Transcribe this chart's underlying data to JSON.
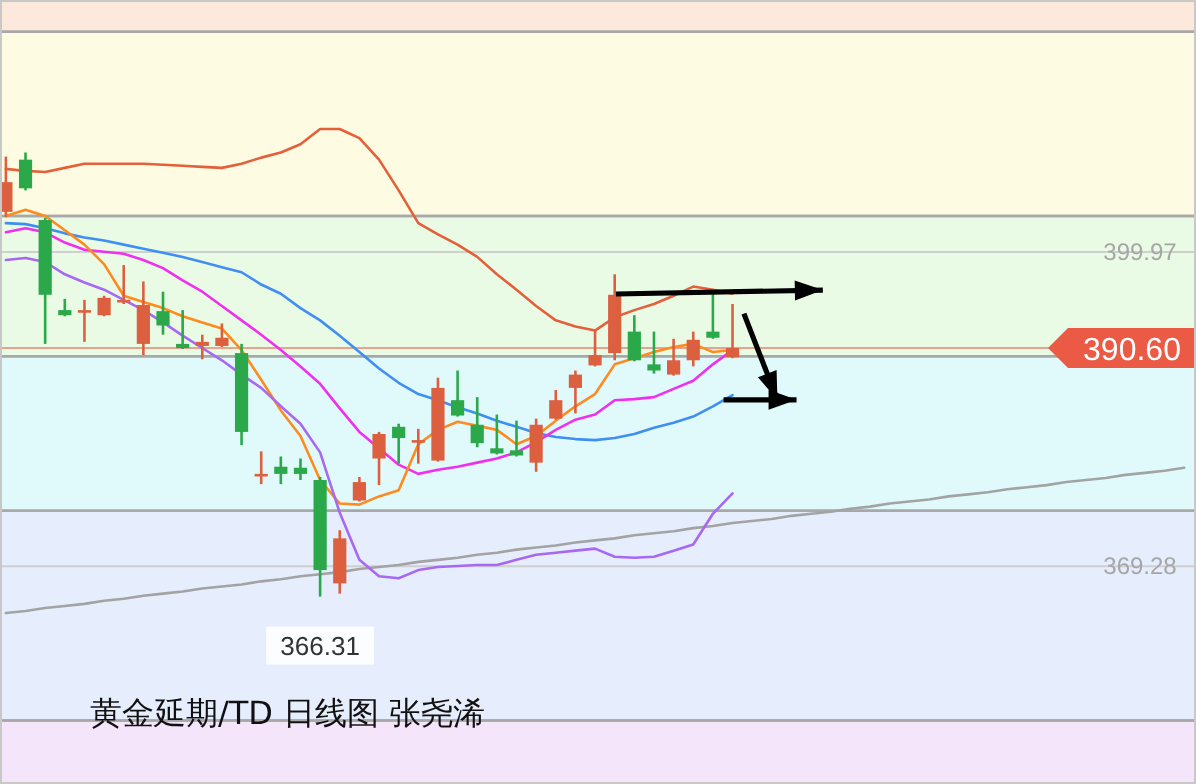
{
  "chart_data": {
    "type": "candlestick",
    "title": "黄金延期/TD  日线图  张尧浠",
    "categories": [
      null,
      null,
      null,
      null,
      null,
      null,
      null,
      null,
      null,
      null,
      null,
      null,
      null,
      null,
      null,
      null,
      null,
      null,
      null,
      null,
      null,
      null,
      null,
      null,
      null,
      null,
      null,
      null,
      null,
      null,
      null,
      null,
      null,
      null,
      null,
      null,
      null,
      null,
      null,
      null,
      null,
      null,
      null,
      null,
      null,
      null,
      null,
      null,
      null,
      null,
      null,
      null,
      null,
      null,
      null,
      null,
      null,
      null,
      null,
      null,
      null
    ],
    "ohlc": [
      [
        403.9,
        409.3,
        403.4,
        406.8
      ],
      [
        409.0,
        409.7,
        406.0,
        406.2
      ],
      [
        403.1,
        403.3,
        391.0,
        395.8
      ],
      [
        394.3,
        395.4,
        393.7,
        393.8
      ],
      [
        394.1,
        395.3,
        391.2,
        394.3
      ],
      [
        393.8,
        395.7,
        393.7,
        395.5
      ],
      [
        395.1,
        398.7,
        394.9,
        395.3
      ],
      [
        391.0,
        397.1,
        389.9,
        394.8
      ],
      [
        394.2,
        396.1,
        391.9,
        392.8
      ],
      [
        391.0,
        394.3,
        390.5,
        390.6
      ],
      [
        390.8,
        391.9,
        389.5,
        391.2
      ],
      [
        390.8,
        393.0,
        390.7,
        391.6
      ],
      [
        390.1,
        391.0,
        381.1,
        382.4
      ],
      [
        378.2,
        380.5,
        377.3,
        378.3
      ],
      [
        379.0,
        380.0,
        377.3,
        378.3
      ],
      [
        378.9,
        379.8,
        377.7,
        378.3
      ],
      [
        377.7,
        378.0,
        366.31,
        368.9
      ],
      [
        367.6,
        372.8,
        366.6,
        372.0
      ],
      [
        375.7,
        378.0,
        375.6,
        377.5
      ],
      [
        379.8,
        382.4,
        377.2,
        382.2
      ],
      [
        382.9,
        383.2,
        379.3,
        381.8
      ],
      [
        381.5,
        382.7,
        379.3,
        381.6
      ],
      [
        379.6,
        387.7,
        379.5,
        386.7
      ],
      [
        385.5,
        388.4,
        383.9,
        384.0
      ],
      [
        383.1,
        385.8,
        380.9,
        381.3
      ],
      [
        380.8,
        384.1,
        380.2,
        380.3
      ],
      [
        380.6,
        383.5,
        380.0,
        380.1
      ],
      [
        379.4,
        383.7,
        378.5,
        383.1
      ],
      [
        383.7,
        386.5,
        383.6,
        385.5
      ],
      [
        386.7,
        388.4,
        384.2,
        388.0
      ],
      [
        388.9,
        392.3,
        388.8,
        389.9
      ],
      [
        390.1,
        397.8,
        389.4,
        395.8
      ],
      [
        392.2,
        393.8,
        389.3,
        389.4
      ],
      [
        389.0,
        392.2,
        388.1,
        388.4
      ],
      [
        388.0,
        391.5,
        387.9,
        389.4
      ],
      [
        389.4,
        392.2,
        388.8,
        391.4
      ],
      [
        392.2,
        395.9,
        391.5,
        391.6
      ],
      [
        389.7,
        394.9,
        389.6,
        390.6
      ],
      null,
      null,
      null,
      null,
      null,
      null,
      null,
      null,
      null,
      null,
      null,
      null,
      null,
      null,
      null,
      null,
      null,
      null,
      null,
      null,
      null,
      null,
      null
    ],
    "colors": [
      "#dc5f3f",
      "#2aa84a",
      "#2aa84a",
      "#2aa84a",
      "#dc5f3f",
      "#dc5f3f",
      "#dc5f3f",
      "#dc5f3f",
      "#2aa84a",
      "#2aa84a",
      "#dc5f3f",
      "#dc5f3f",
      "#2aa84a",
      "#dc5f3f",
      "#2aa84a",
      "#2aa84a",
      "#2aa84a",
      "#dc5f3f",
      "#dc5f3f",
      "#dc5f3f",
      "#2aa84a",
      "#dc5f3f",
      "#dc5f3f",
      "#2aa84a",
      "#2aa84a",
      "#2aa84a",
      "#2aa84a",
      "#dc5f3f",
      "#dc5f3f",
      "#dc5f3f",
      "#dc5f3f",
      "#dc5f3f",
      "#2aa84a",
      "#2aa84a",
      "#dc5f3f",
      "#dc5f3f",
      "#2aa84a",
      "#dc5f3f",
      null,
      null,
      null,
      null,
      null,
      null,
      null,
      null,
      null,
      null,
      null,
      null,
      null,
      null,
      null,
      null,
      null,
      null,
      null,
      null,
      null,
      null,
      null
    ],
    "series": [
      {
        "type": "line",
        "color": "#a3a3a3",
        "values": [
          364.7,
          364.9,
          365.2,
          365.4,
          365.6,
          365.9,
          366.1,
          366.4,
          366.6,
          366.8,
          367.1,
          367.3,
          367.5,
          367.8,
          368.0,
          368.3,
          368.5,
          368.7,
          369.0,
          369.2,
          369.4,
          369.7,
          369.9,
          370.1,
          370.4,
          370.6,
          370.9,
          371.1,
          371.3,
          371.6,
          371.8,
          372.0,
          372.3,
          372.5,
          372.7,
          373.0,
          373.2,
          373.5,
          373.7,
          373.9,
          374.2,
          374.4,
          374.6,
          374.9,
          375.1,
          375.4,
          375.6,
          375.8,
          376.1,
          376.3,
          376.5,
          376.8,
          377.0,
          377.2,
          377.5,
          377.7,
          377.9,
          378.2,
          378.4,
          378.6,
          378.9
        ]
      },
      {
        "type": "line",
        "color": "#e4603a",
        "values": [
          408.1,
          407.9,
          407.8,
          408.2,
          408.6,
          408.6,
          408.6,
          408.6,
          408.5,
          408.4,
          408.3,
          408.2,
          408.6,
          409.2,
          409.7,
          410.5,
          412.0,
          412.0,
          411.1,
          409.0,
          406.0,
          402.8,
          401.7,
          400.7,
          399.5,
          397.8,
          396.3,
          394.7,
          393.3,
          392.7,
          392.3,
          393.6,
          394.3,
          394.9,
          395.7,
          396.6,
          396.3,
          395.9,
          null,
          null,
          null,
          null,
          null,
          null,
          null,
          null,
          null,
          null,
          null,
          null,
          null,
          null,
          null,
          null,
          null,
          null,
          null,
          null,
          null,
          null,
          null
        ]
      },
      {
        "type": "line",
        "color": "#3f8ff2",
        "values": [
          402.8,
          402.7,
          402.3,
          401.8,
          401.4,
          401.1,
          400.7,
          400.3,
          399.9,
          399.5,
          399.0,
          398.5,
          398.0,
          396.8,
          395.9,
          394.5,
          393.3,
          391.8,
          390.2,
          388.6,
          387.2,
          386.1,
          385.5,
          384.8,
          384.2,
          383.5,
          382.9,
          382.3,
          381.9,
          381.7,
          381.6,
          381.8,
          382.2,
          382.8,
          383.3,
          383.9,
          384.9,
          386.0,
          null,
          null,
          null,
          null,
          null,
          null,
          null,
          null,
          null,
          null,
          null,
          null,
          null,
          null,
          null,
          null,
          null,
          null,
          null,
          null,
          null,
          null,
          null
        ]
      },
      {
        "type": "line",
        "color": "#f02ff0",
        "values": [
          401.9,
          402.3,
          401.9,
          400.9,
          400.2,
          400.0,
          399.8,
          399.2,
          398.4,
          397.2,
          396.1,
          394.7,
          393.3,
          391.9,
          390.4,
          388.8,
          387.1,
          384.7,
          382.4,
          380.8,
          379.2,
          378.3,
          378.7,
          379.0,
          379.4,
          379.8,
          380.4,
          381.4,
          382.6,
          383.6,
          384.1,
          385.5,
          385.6,
          385.8,
          386.6,
          387.4,
          389.0,
          390.4,
          null,
          null,
          null,
          null,
          null,
          null,
          null,
          null,
          null,
          null,
          null,
          null,
          null,
          null,
          null,
          null,
          null,
          null,
          null,
          null,
          null,
          null,
          null
        ]
      },
      {
        "type": "line",
        "color": "#ff8a1e",
        "values": [
          403.5,
          404.1,
          403.5,
          402.1,
          400.7,
          398.8,
          395.7,
          395.1,
          394.5,
          393.7,
          393.1,
          392.5,
          390.4,
          387.5,
          384.5,
          382.0,
          377.7,
          375.4,
          375.3,
          376.1,
          376.7,
          381.2,
          382.6,
          383.4,
          383.0,
          382.6,
          381.2,
          382.0,
          383.5,
          384.9,
          386.1,
          389.0,
          389.6,
          390.2,
          390.7,
          391.0,
          390.2,
          390.4,
          null,
          null,
          null,
          null,
          null,
          null,
          null,
          null,
          null,
          null,
          null,
          null,
          null,
          null,
          null,
          null,
          null,
          null,
          null,
          null,
          null,
          null,
          null
        ]
      },
      {
        "type": "line",
        "color": "#a768f2",
        "values": [
          399.2,
          399.4,
          399.0,
          397.8,
          397.0,
          396.3,
          395.3,
          394.3,
          393.1,
          391.8,
          390.6,
          389.4,
          388.0,
          386.7,
          384.9,
          383.2,
          380.4,
          374.5,
          369.9,
          368.3,
          368.1,
          368.9,
          369.2,
          369.3,
          369.4,
          369.4,
          369.9,
          370.4,
          370.6,
          370.8,
          371.0,
          370.2,
          370.1,
          370.2,
          370.8,
          371.4,
          374.4,
          376.4,
          null,
          null,
          null,
          null,
          null,
          null,
          null,
          null,
          null,
          null,
          null,
          null,
          null,
          null,
          null,
          null,
          null,
          null,
          null,
          null,
          null,
          null,
          null
        ]
      }
    ],
    "ylim": [
      348.0,
      424.6
    ],
    "yticks": [
      {
        "value": 399.97,
        "label": "399.97"
      },
      {
        "value": 369.28,
        "label": "369.28"
      }
    ],
    "grid": "y",
    "ref_lines": [
      {
        "axis": "y",
        "value": 390.6,
        "label": "390.60",
        "color": "#ea5a44"
      }
    ],
    "bands": [
      {
        "axis": "y",
        "from": 421.5,
        "to": 424.6,
        "color": "#fde9dc"
      },
      {
        "axis": "y",
        "from": 403.5,
        "to": 421.5,
        "color": "#fefbe3"
      },
      {
        "axis": "y",
        "from": 389.8,
        "to": 403.5,
        "color": "#eafbe5"
      },
      {
        "axis": "y",
        "from": 374.7,
        "to": 389.8,
        "color": "#e0fafb"
      },
      {
        "axis": "y",
        "from": 354.2,
        "to": 374.7,
        "color": "#e6edfd"
      },
      {
        "axis": "y",
        "from": 348.0,
        "to": 354.2,
        "color": "#f4e5fb"
      }
    ],
    "annotations": [
      {
        "text": "366.31",
        "y": 366.31
      }
    ]
  }
}
